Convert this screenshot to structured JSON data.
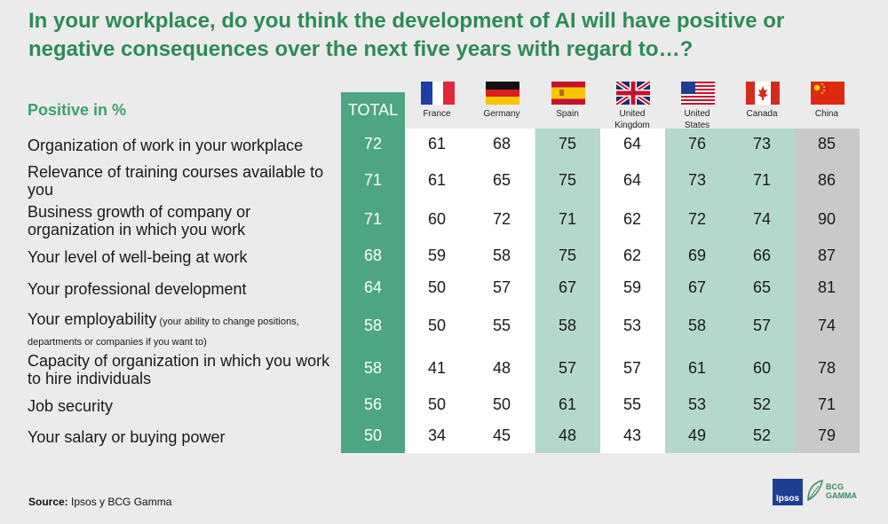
{
  "title": "In your workplace, do you think the development of AI will have positive or negative consequences over the next five years with regard to…?",
  "subhead": "Positive in %",
  "total_label": "TOTAL",
  "source_label": "Source:",
  "source_text": "Ipsos y BCG Gamma",
  "logos": {
    "ipsos": "Ipsos",
    "bcg": "BCG",
    "gamma": "GAMMA"
  },
  "chart_data": {
    "type": "table",
    "title": "In your workplace, do you think the development of AI will have positive or negative consequences over the next five years with regard to…?",
    "unit": "Positive in %",
    "columns": [
      "TOTAL",
      "France",
      "Germany",
      "Spain",
      "United Kingdom",
      "United States",
      "Canada",
      "China"
    ],
    "countries": [
      {
        "name": "France",
        "lines": [
          "France"
        ],
        "flag": "france"
      },
      {
        "name": "Germany",
        "lines": [
          "Germany"
        ],
        "flag": "germany"
      },
      {
        "name": "Spain",
        "lines": [
          "Spain"
        ],
        "flag": "spain"
      },
      {
        "name": "United Kingdom",
        "lines": [
          "United",
          "Kingdom"
        ],
        "flag": "uk"
      },
      {
        "name": "United States",
        "lines": [
          "United",
          "States"
        ],
        "flag": "usa"
      },
      {
        "name": "Canada",
        "lines": [
          "Canada"
        ],
        "flag": "canada"
      },
      {
        "name": "China",
        "lines": [
          "China"
        ],
        "flag": "china"
      }
    ],
    "rows": [
      {
        "label": "Organization of work in your workplace",
        "note": "",
        "values": [
          72,
          61,
          68,
          75,
          64,
          76,
          73,
          85
        ]
      },
      {
        "label": "Relevance of training courses available to you",
        "note": "",
        "values": [
          71,
          61,
          65,
          75,
          64,
          73,
          71,
          86
        ]
      },
      {
        "label": "Business growth of company or organization in which you work",
        "note": "",
        "values": [
          71,
          60,
          72,
          71,
          62,
          72,
          74,
          90
        ]
      },
      {
        "label": "Your level of well-being at work",
        "note": "",
        "values": [
          68,
          59,
          58,
          75,
          62,
          69,
          66,
          87
        ]
      },
      {
        "label": "Your professional development",
        "note": "",
        "values": [
          64,
          50,
          57,
          67,
          59,
          67,
          65,
          81
        ]
      },
      {
        "label": "Your employability",
        "note": "(your ability to change positions, departments or companies if you want to)",
        "values": [
          58,
          50,
          55,
          58,
          53,
          58,
          57,
          74
        ]
      },
      {
        "label": "Capacity of organization in which you work to hire individuals",
        "note": "",
        "values": [
          58,
          41,
          48,
          57,
          57,
          61,
          60,
          78
        ]
      },
      {
        "label": "Job security",
        "note": "",
        "values": [
          56,
          50,
          50,
          61,
          55,
          53,
          52,
          71
        ]
      },
      {
        "label": "Your salary or buying power",
        "note": "",
        "values": [
          50,
          34,
          45,
          48,
          43,
          49,
          52,
          79
        ]
      }
    ],
    "colors": {
      "title": "#2e8b57",
      "total_column": "#4ea583",
      "teal_column": "#b4d9cc",
      "white_column": "#ffffff",
      "china_column": "#c9c9c9"
    }
  }
}
